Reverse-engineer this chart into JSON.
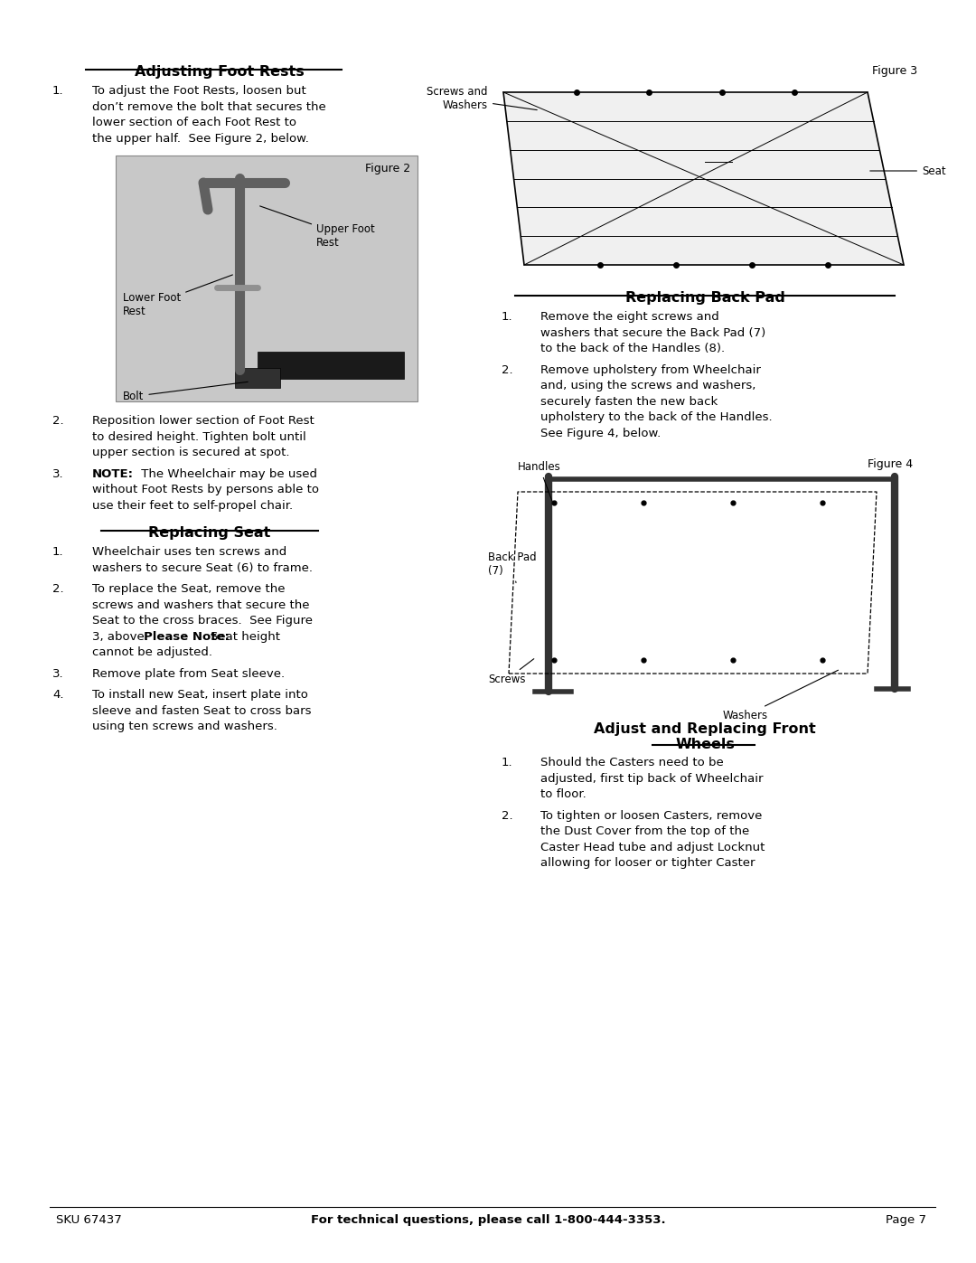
{
  "bg_color": "#ffffff",
  "page_width": 10.8,
  "page_height": 13.97,
  "section1_title": "Adjusting Foot Rests",
  "section2_title": "Replacing Seat",
  "section3_title": "Replacing Back Pad",
  "section4_title": "Adjust and Replacing Front\nWheels",
  "s1_items": [
    [
      "To adjust the Foot Rests, loosen but",
      "don’t remove the bolt that secures the",
      "lower section of each Foot Rest to",
      "the upper half.  See Figure 2, below."
    ],
    [
      "Reposition lower section of Foot Rest",
      "to desired height. Tighten bolt until",
      "upper section is secured at spot."
    ],
    [
      "NOTE_BOLD: The Wheelchair may be used",
      "without Foot Rests by persons able to",
      "use their feet to self-propel chair."
    ]
  ],
  "s2_items": [
    [
      "Wheelchair uses ten screws and",
      "washers to secure Seat (6) to frame."
    ],
    [
      "To replace the Seat, remove the",
      "screws and washers that secure the",
      "Seat to the cross braces.  See Figure",
      "3, above. BOLD:Please Note: ENDBOLD:Seat height",
      "cannot be adjusted."
    ],
    [
      "Remove plate from Seat sleeve."
    ],
    [
      "To install new Seat, insert plate into",
      "sleeve and fasten Seat to cross bars",
      "using ten screws and washers."
    ]
  ],
  "s3_items": [
    [
      "Remove the eight screws and",
      "washers that secure the Back Pad (7)",
      "to the back of the Handles (8)."
    ],
    [
      "Remove upholstery from Wheelchair",
      "and, using the screws and washers,",
      "securely fasten the new back",
      "upholstery to the back of the Handles.",
      "See Figure 4, below."
    ]
  ],
  "s4_items": [
    [
      "Should the Casters need to be",
      "adjusted, first tip back of Wheelchair",
      "to floor."
    ],
    [
      "To tighten or loosen Casters, remove",
      "the Dust Cover from the top of the",
      "Caster Head tube and adjust Locknut",
      "allowing for looser or tighter Caster"
    ]
  ],
  "fig2_label": "Figure 2",
  "fig3_label": "Figure 3",
  "fig4_label": "Figure 4",
  "footer_sku": "SKU 67437",
  "footer_middle": "For technical questions, please call 1-800-444-3353.",
  "footer_page": "Page 7"
}
